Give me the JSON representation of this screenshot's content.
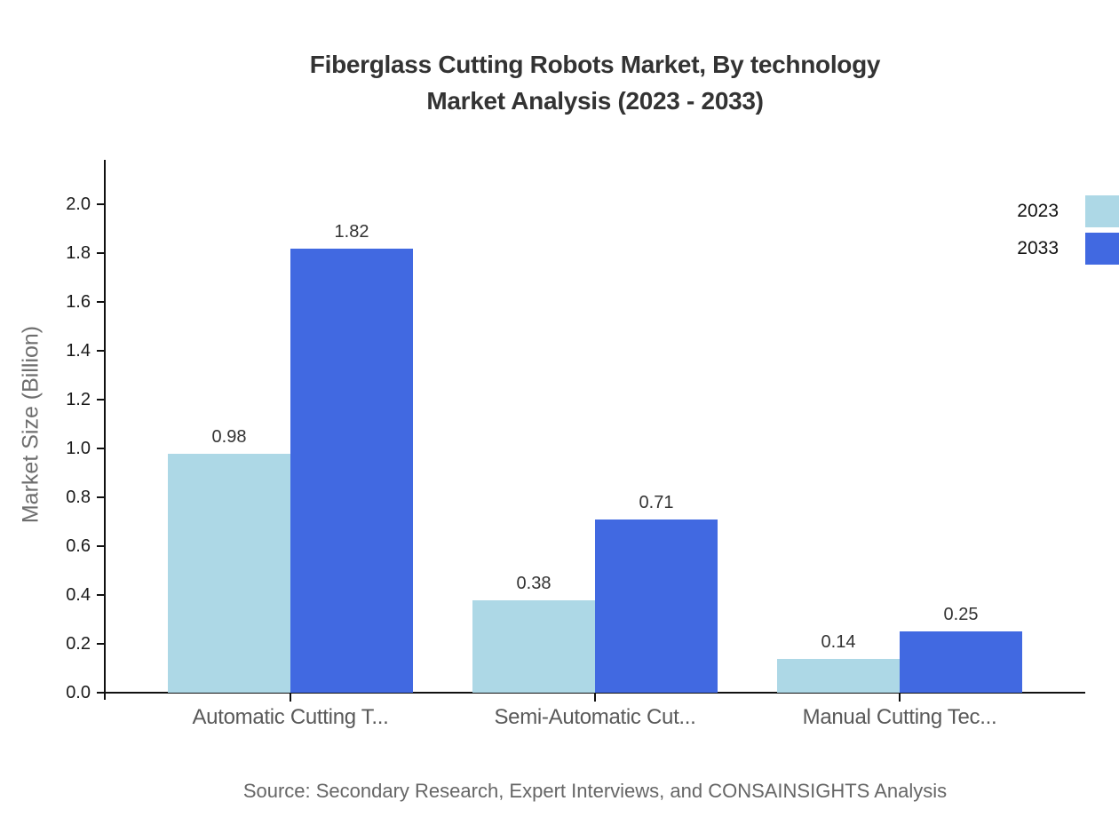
{
  "title": {
    "line1": "Fiberglass Cutting Robots Market, By technology",
    "line2": "Market Analysis (2023 - 2033)"
  },
  "y_axis": {
    "label": "Market Size (Billion)"
  },
  "legend": {
    "items": [
      {
        "label": "2023",
        "color": "#ADD8E6"
      },
      {
        "label": "2033",
        "color": "#4169E1"
      }
    ],
    "position": "top-right"
  },
  "source": "Source: Secondary Research, Expert Interviews, and CONSAINSIGHTS Analysis",
  "chart_data": {
    "type": "bar",
    "title": "Fiberglass Cutting Robots Market, By technology Market Analysis (2023 - 2033)",
    "categories": [
      "Automatic Cutting T...",
      "Semi-Automatic Cut...",
      "Manual Cutting Tec..."
    ],
    "series": [
      {
        "name": "2023",
        "color": "#ADD8E6",
        "values": [
          0.98,
          0.38,
          0.14
        ]
      },
      {
        "name": "2033",
        "color": "#4169E1",
        "values": [
          1.82,
          0.71,
          0.25
        ]
      }
    ],
    "xlabel": "",
    "ylabel": "Market Size (Billion)",
    "ylim": [
      0.0,
      2.0
    ],
    "yticks": [
      0.0,
      0.2,
      0.4,
      0.6,
      0.8,
      1.0,
      1.2,
      1.4,
      1.6,
      1.8,
      2.0
    ],
    "grid": false,
    "legend_position": "top-right",
    "value_labels": true
  }
}
